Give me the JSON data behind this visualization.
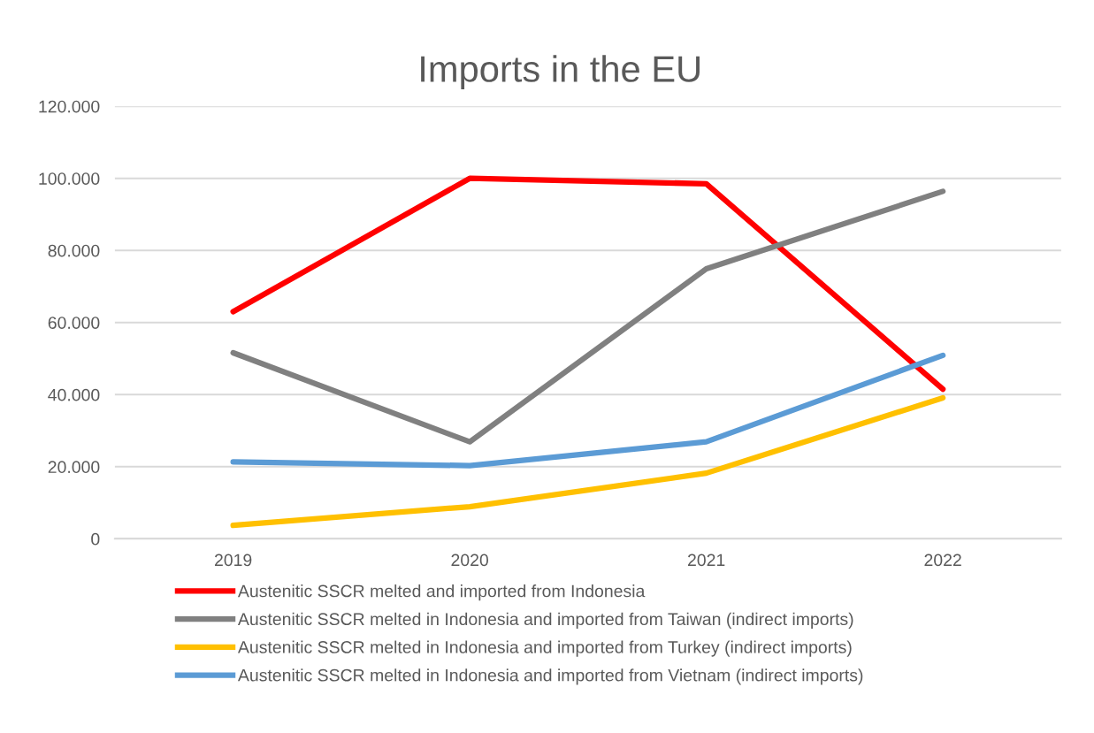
{
  "chart_data": {
    "type": "line",
    "title": "Imports in the EU",
    "categories": [
      "2019",
      "2020",
      "2021",
      "2022"
    ],
    "series": [
      {
        "name": "Austenitic SSCR melted and imported from Indonesia",
        "color": "#ff0000",
        "values": [
          63000,
          100000,
          98500,
          41500
        ]
      },
      {
        "name": "Austenitic SSCR melted in Indonesia and imported from Taiwan (indirect imports)",
        "color": "#808080",
        "values": [
          51600,
          26900,
          74900,
          96400
        ]
      },
      {
        "name": "Austenitic SSCR melted in Indonesia and imported from Turkey (indirect imports)",
        "color": "#ffc000",
        "values": [
          3700,
          8900,
          18200,
          39100
        ]
      },
      {
        "name": "Austenitic SSCR melted in Indonesia and imported from Vietnam (indirect imports)",
        "color": "#5b9bd5",
        "values": [
          21300,
          20300,
          26900,
          50900
        ]
      }
    ],
    "ylim": [
      0,
      120000
    ],
    "yticks": [
      0,
      {
        "value": 20000,
        "label": "20.000"
      },
      {
        "value": 40000,
        "label": "40.000"
      },
      {
        "value": 60000,
        "label": "60.000"
      },
      {
        "value": 80000,
        "label": "80.000"
      },
      {
        "value": 100000,
        "label": "100.000"
      },
      {
        "value": 120000,
        "label": "120.000"
      }
    ],
    "grid": "y",
    "legend": "bottom",
    "marker": "none",
    "line_style": "solid"
  }
}
